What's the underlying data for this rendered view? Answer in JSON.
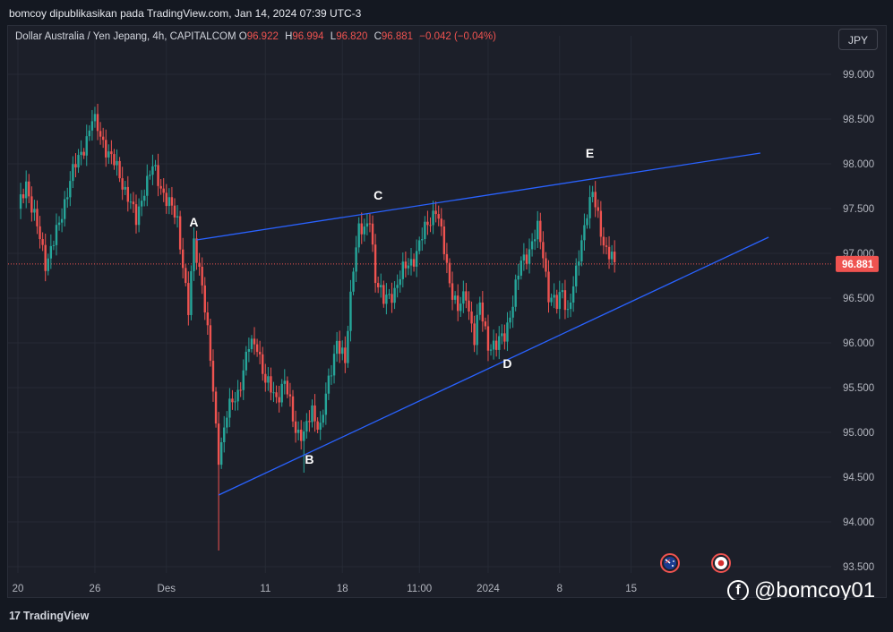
{
  "header": {
    "publish_line": "bomcoy dipublikasikan pada TradingView.com, Jan 14, 2024 07:39 UTC-3"
  },
  "legend": {
    "symbol": "Dollar Australia / Yen Jepang, 4h, CAPITALCOM",
    "open_label": "O",
    "open": "96.922",
    "high_label": "H",
    "high": "96.994",
    "low_label": "L",
    "low": "96.820",
    "close_label": "C",
    "close": "96.881",
    "change": "−0.042 (−0.04%)"
  },
  "currency_button": "JPY",
  "price_tag": "96.881",
  "watermark": "@bomcoy01",
  "footer": {
    "brand": "TradingView"
  },
  "colors": {
    "up": "#26a69a",
    "down": "#ef5350",
    "trendline": "#2962ff",
    "background": "#1c1f29",
    "grid": "#262a35",
    "text": "#b2b5be"
  },
  "icons": {
    "event_au": "australia-flag-icon",
    "event_jp": "japan-flag-icon"
  },
  "chart_data": {
    "type": "candlestick",
    "y_ticks": [
      "99.000",
      "98.500",
      "98.000",
      "97.500",
      "97.000",
      "96.500",
      "96.000",
      "95.500",
      "95.000",
      "94.500",
      "94.000",
      "93.500"
    ],
    "ylim": [
      93.5,
      99.0
    ],
    "x_ticks": [
      "20",
      "26",
      "Des",
      "11",
      "18",
      "11:00",
      "2024",
      "8",
      "15"
    ],
    "x_tick_index": [
      0,
      28,
      54,
      90,
      118,
      146,
      171,
      197,
      223
    ],
    "current_price": 96.881,
    "anchors": [
      {
        "i": 0,
        "p": 97.45
      },
      {
        "i": 3,
        "p": 97.8
      },
      {
        "i": 8,
        "p": 97.15
      },
      {
        "i": 10,
        "p": 96.9
      },
      {
        "i": 15,
        "p": 97.3
      },
      {
        "i": 19,
        "p": 97.85
      },
      {
        "i": 23,
        "p": 98.1
      },
      {
        "i": 27,
        "p": 98.5
      },
      {
        "i": 31,
        "p": 98.25
      },
      {
        "i": 35,
        "p": 98.0
      },
      {
        "i": 40,
        "p": 97.65
      },
      {
        "i": 43,
        "p": 97.35
      },
      {
        "i": 46,
        "p": 97.75
      },
      {
        "i": 49,
        "p": 97.95
      },
      {
        "i": 52,
        "p": 97.75
      },
      {
        "i": 55,
        "p": 97.55
      },
      {
        "i": 58,
        "p": 97.35
      },
      {
        "i": 60,
        "p": 96.9
      },
      {
        "i": 62,
        "p": 96.35
      },
      {
        "i": 64,
        "p": 97.1
      },
      {
        "i": 67,
        "p": 96.7
      },
      {
        "i": 70,
        "p": 95.8
      },
      {
        "i": 72,
        "p": 95.05
      },
      {
        "i": 73,
        "p": 94.75
      },
      {
        "i": 76,
        "p": 95.2
      },
      {
        "i": 80,
        "p": 95.45
      },
      {
        "i": 84,
        "p": 95.95
      },
      {
        "i": 87,
        "p": 96.0
      },
      {
        "i": 90,
        "p": 95.55
      },
      {
        "i": 94,
        "p": 95.4
      },
      {
        "i": 97,
        "p": 95.55
      },
      {
        "i": 101,
        "p": 95.05
      },
      {
        "i": 104,
        "p": 94.95
      },
      {
        "i": 107,
        "p": 95.25
      },
      {
        "i": 110,
        "p": 95.05
      },
      {
        "i": 113,
        "p": 95.55
      },
      {
        "i": 116,
        "p": 96.05
      },
      {
        "i": 119,
        "p": 95.75
      },
      {
        "i": 122,
        "p": 96.9
      },
      {
        "i": 124,
        "p": 97.3
      },
      {
        "i": 126,
        "p": 97.2
      },
      {
        "i": 128,
        "p": 97.4
      },
      {
        "i": 130,
        "p": 96.75
      },
      {
        "i": 133,
        "p": 96.45
      },
      {
        "i": 137,
        "p": 96.6
      },
      {
        "i": 141,
        "p": 96.85
      },
      {
        "i": 145,
        "p": 97.0
      },
      {
        "i": 149,
        "p": 97.35
      },
      {
        "i": 152,
        "p": 97.5
      },
      {
        "i": 154,
        "p": 97.2
      },
      {
        "i": 157,
        "p": 96.7
      },
      {
        "i": 160,
        "p": 96.35
      },
      {
        "i": 163,
        "p": 96.55
      },
      {
        "i": 166,
        "p": 96.05
      },
      {
        "i": 168,
        "p": 96.4
      },
      {
        "i": 171,
        "p": 96.0
      },
      {
        "i": 174,
        "p": 95.95
      },
      {
        "i": 177,
        "p": 96.1
      },
      {
        "i": 180,
        "p": 96.45
      },
      {
        "i": 183,
        "p": 96.9
      },
      {
        "i": 186,
        "p": 97.05
      },
      {
        "i": 189,
        "p": 97.25
      },
      {
        "i": 191,
        "p": 97.0
      },
      {
        "i": 193,
        "p": 96.55
      },
      {
        "i": 196,
        "p": 96.4
      },
      {
        "i": 198,
        "p": 96.6
      },
      {
        "i": 200,
        "p": 96.35
      },
      {
        "i": 203,
        "p": 96.75
      },
      {
        "i": 205,
        "p": 97.15
      },
      {
        "i": 207,
        "p": 97.5
      },
      {
        "i": 209,
        "p": 97.65
      },
      {
        "i": 212,
        "p": 97.25
      },
      {
        "i": 214,
        "p": 97.05
      },
      {
        "i": 217,
        "p": 96.9
      }
    ],
    "trendlines": [
      {
        "name": "upper",
        "from": {
          "i": 65,
          "p": 97.15
        },
        "to": {
          "i": 270,
          "p": 98.12
        }
      },
      {
        "name": "lower",
        "from": {
          "i": 73,
          "p": 94.3
        },
        "to": {
          "i": 273,
          "p": 97.18
        }
      }
    ],
    "annotations": [
      {
        "text": "A",
        "i": 64,
        "p": 97.3
      },
      {
        "text": "B",
        "i": 106,
        "p": 94.65
      },
      {
        "text": "C",
        "i": 131,
        "p": 97.6
      },
      {
        "text": "D",
        "i": 178,
        "p": 95.72
      },
      {
        "text": "E",
        "i": 208,
        "p": 98.07
      }
    ]
  }
}
